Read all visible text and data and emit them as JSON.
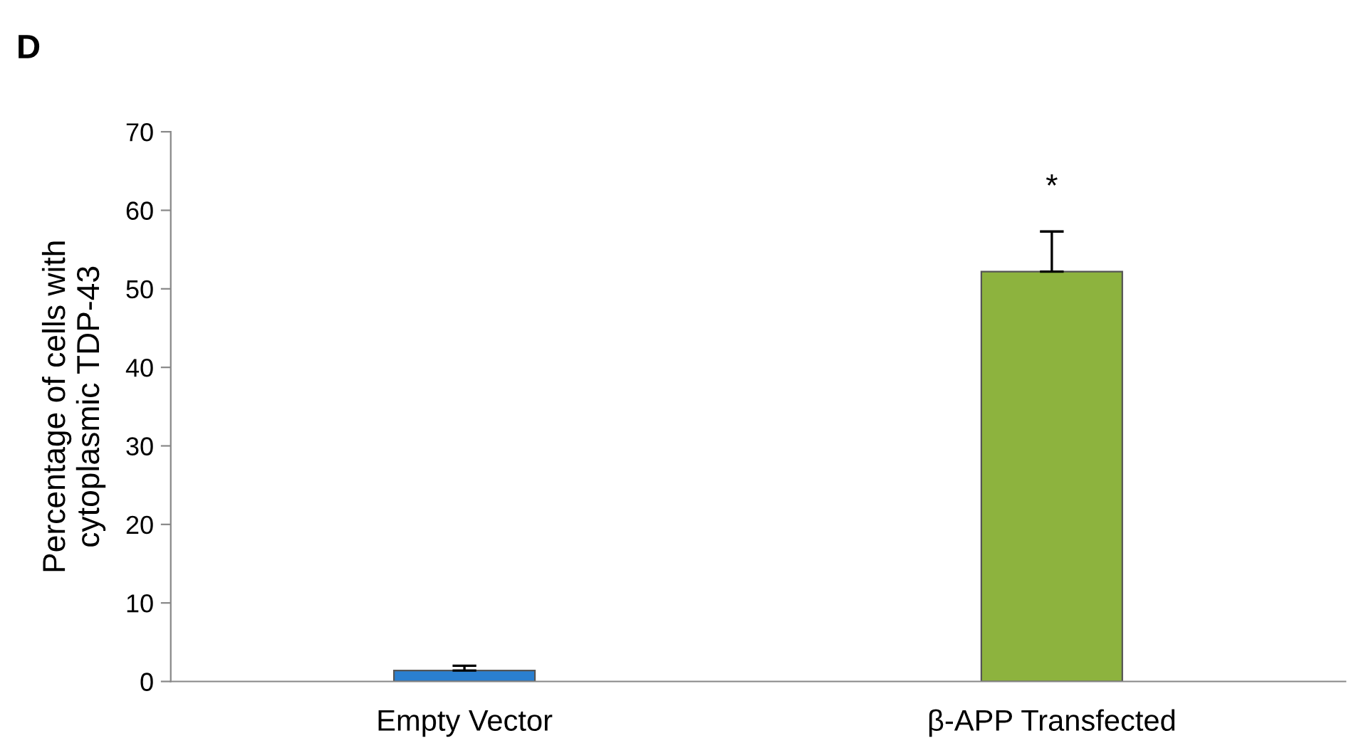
{
  "chart_data": {
    "type": "bar",
    "title": "D",
    "ylabel": "Percentage of cells with\ncytoplasmic TDP-43",
    "categories": [
      "Empty Vector",
      "β-APP Transfected"
    ],
    "values": [
      1.4,
      52.2
    ],
    "errors": [
      0.6,
      5.1
    ],
    "colors": [
      "#2a7fd0",
      "#8db33e"
    ],
    "ylim": [
      0,
      70
    ],
    "yticks": [
      0,
      10,
      20,
      30,
      40,
      50,
      60,
      70
    ],
    "grid": false,
    "legend": false,
    "annotations": [
      "*"
    ]
  }
}
